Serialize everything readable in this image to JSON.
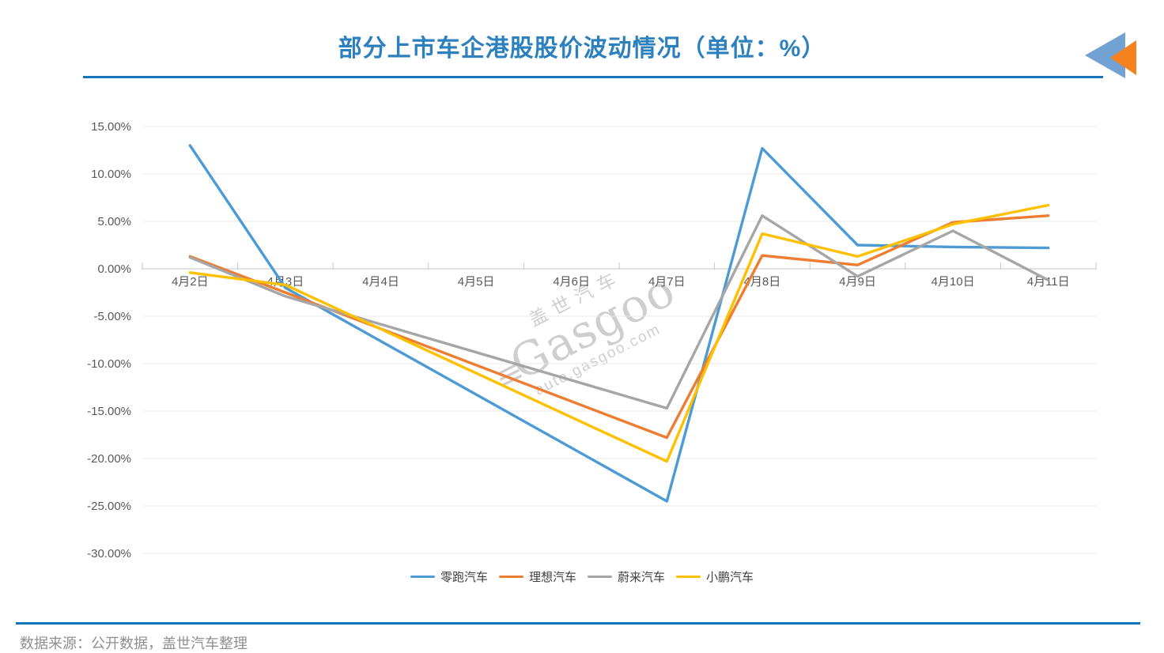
{
  "page": {
    "title": "部分上市车企港股股价波动情况（单位：%）",
    "source_note": "数据来源：公开数据，盖世汽车整理"
  },
  "watermark": {
    "brand_cn": "盖世汽车",
    "brand_en": "Gasgoo",
    "url": "auto.gasgoo.com"
  },
  "chart_data": {
    "type": "line",
    "title": "部分上市车企港股股价波动情况（单位：%）",
    "categories": [
      "4月2日",
      "4月3日",
      "4月4日",
      "4月5日",
      "4月6日",
      "4月7日",
      "4月8日",
      "4月9日",
      "4月10日",
      "4月11日"
    ],
    "series": [
      {
        "name": "零跑汽车",
        "color": "#4D9AD5",
        "values": [
          13.0,
          -2.0,
          null,
          null,
          null,
          -24.5,
          12.7,
          2.5,
          2.3,
          2.2
        ]
      },
      {
        "name": "理想汽车",
        "color": "#ED7D31",
        "values": [
          1.3,
          -2.5,
          null,
          null,
          null,
          -17.8,
          1.4,
          0.4,
          4.9,
          5.6
        ]
      },
      {
        "name": "蔚来汽车",
        "color": "#A6A6A6",
        "values": [
          1.2,
          -2.9,
          null,
          null,
          null,
          -14.7,
          5.6,
          -0.8,
          4.0,
          -1.2
        ]
      },
      {
        "name": "小鹏汽车",
        "color": "#FFC000",
        "values": [
          -0.4,
          -1.7,
          null,
          null,
          null,
          -20.3,
          3.7,
          1.3,
          4.7,
          6.7
        ]
      }
    ],
    "y_axis": {
      "min": -30,
      "max": 15,
      "step": 5,
      "tick_labels": [
        "15.00%",
        "10.00%",
        "5.00%",
        "0.00%",
        "-5.00%",
        "-10.00%",
        "-15.00%",
        "-20.00%",
        "-25.00%",
        "-30.00%"
      ]
    },
    "grid": true,
    "legend_position": "bottom",
    "unit": "%"
  },
  "styles": {
    "title_color": "#2C80BE",
    "divider_color": "#1474BA",
    "axis_label_color": "#595959",
    "grid_color": "#E9E9E9",
    "axis_line_color": "#C6C6C6",
    "source_color": "#8F8F8F",
    "watermark_color": "#C3C3C3",
    "logo_blue": "#72A1D4",
    "logo_orange": "#F5821F"
  }
}
